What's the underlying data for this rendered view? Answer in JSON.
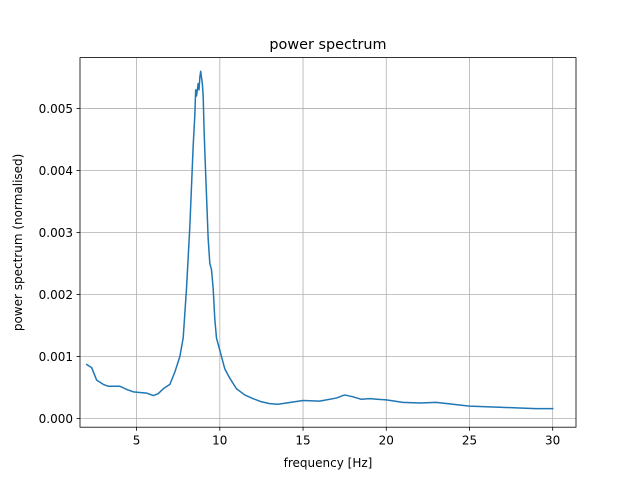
{
  "chart_data": {
    "type": "line",
    "title": "power spectrum",
    "xlabel": "frequency [Hz]",
    "ylabel": "power spectrum (normalised)",
    "xlim": [
      1.6,
      31.4
    ],
    "ylim": [
      -0.00014,
      0.00582
    ],
    "grid": true,
    "x_ticks": [
      5,
      10,
      15,
      20,
      25,
      30
    ],
    "x_tick_labels": [
      "5",
      "10",
      "15",
      "20",
      "25",
      "30"
    ],
    "y_ticks": [
      0.0,
      0.001,
      0.002,
      0.003,
      0.004,
      0.005
    ],
    "y_tick_labels": [
      "0.000",
      "0.001",
      "0.002",
      "0.003",
      "0.004",
      "0.005"
    ],
    "series": [
      {
        "color": "#1f77b4",
        "x": [
          2.0,
          2.3,
          2.6,
          3.0,
          3.3,
          3.6,
          4.0,
          4.4,
          4.8,
          5.2,
          5.6,
          6.0,
          6.3,
          6.6,
          7.0,
          7.3,
          7.6,
          7.8,
          8.0,
          8.2,
          8.4,
          8.5,
          8.55,
          8.6,
          8.7,
          8.75,
          8.8,
          8.85,
          8.9,
          8.95,
          9.0,
          9.05,
          9.1,
          9.2,
          9.3,
          9.4,
          9.5,
          9.6,
          9.7,
          9.8,
          9.9,
          10.0,
          10.3,
          10.6,
          11.0,
          11.5,
          12.0,
          12.5,
          13.0,
          13.5,
          14.0,
          15.0,
          16.0,
          17.0,
          17.5,
          18.0,
          18.5,
          19.0,
          20.0,
          21.0,
          22.0,
          23.0,
          24.0,
          25.0,
          26.0,
          27.0,
          28.0,
          29.0,
          30.0
        ],
        "values": [
          0.00087,
          0.00082,
          0.00062,
          0.00055,
          0.00052,
          0.00052,
          0.00052,
          0.00047,
          0.00043,
          0.00042,
          0.00041,
          0.00037,
          0.0004,
          0.00048,
          0.00055,
          0.00075,
          0.001,
          0.0013,
          0.0021,
          0.0031,
          0.0044,
          0.0049,
          0.0053,
          0.0052,
          0.0054,
          0.0053,
          0.0055,
          0.0056,
          0.0055,
          0.0054,
          0.0052,
          0.0047,
          0.0043,
          0.0036,
          0.0029,
          0.0025,
          0.0024,
          0.0021,
          0.0016,
          0.0013,
          0.0012,
          0.0011,
          0.0008,
          0.00065,
          0.00048,
          0.00038,
          0.00032,
          0.00027,
          0.00024,
          0.00023,
          0.00025,
          0.00029,
          0.00028,
          0.00033,
          0.00038,
          0.00035,
          0.00031,
          0.00032,
          0.0003,
          0.00026,
          0.00025,
          0.00026,
          0.00023,
          0.0002,
          0.00019,
          0.00018,
          0.00017,
          0.00016,
          0.00016
        ]
      }
    ]
  }
}
